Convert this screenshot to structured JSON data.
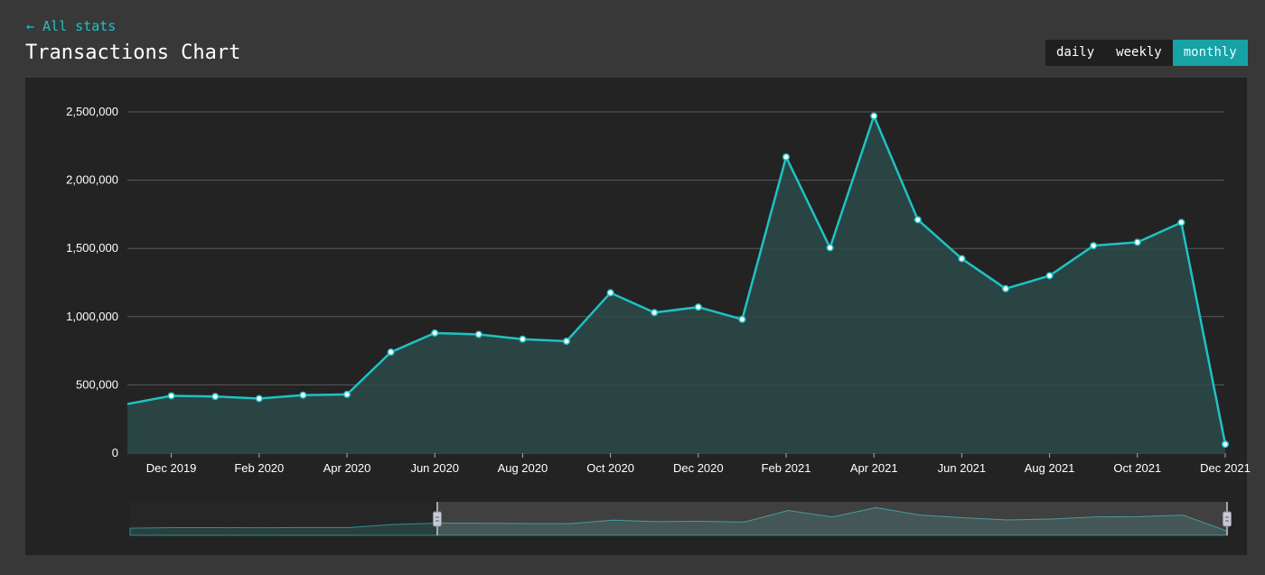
{
  "nav": {
    "back_label": "← All stats"
  },
  "page": {
    "title": "Transactions Chart"
  },
  "range_toggle": {
    "options": [
      {
        "label": "daily",
        "active": false
      },
      {
        "label": "weekly",
        "active": false
      },
      {
        "label": "monthly",
        "active": true
      }
    ]
  },
  "colors": {
    "line": "#1fc2c4",
    "area": "#2c4a4a",
    "grid": "#5a5a5a",
    "text": "#ffffff",
    "active_toggle": "#17a2a6"
  },
  "chart_data": {
    "type": "area",
    "grid": true,
    "ylim": [
      0,
      2500000
    ],
    "yticks": [
      "0",
      "500,000",
      "1,000,000",
      "1,500,000",
      "2,000,000",
      "2,500,000"
    ],
    "xticks": [
      "Dec 2019",
      "Feb 2020",
      "Apr 2020",
      "Jun 2020",
      "Aug 2020",
      "Oct 2020",
      "Dec 2020",
      "Feb 2021",
      "Apr 2021",
      "Jun 2021",
      "Aug 2021",
      "Oct 2021",
      "Dec 2021"
    ],
    "x": [
      "Nov 2019",
      "Dec 2019",
      "Jan 2020",
      "Feb 2020",
      "Mar 2020",
      "Apr 2020",
      "May 2020",
      "Jun 2020",
      "Jul 2020",
      "Aug 2020",
      "Sep 2020",
      "Oct 2020",
      "Nov 2020",
      "Dec 2020",
      "Jan 2021",
      "Feb 2021",
      "Mar 2021",
      "Apr 2021",
      "May 2021",
      "Jun 2021",
      "Jul 2021",
      "Aug 2021",
      "Sep 2021",
      "Oct 2021",
      "Nov 2021",
      "Dec 2021"
    ],
    "values": [
      360000,
      420000,
      415000,
      400000,
      425000,
      430000,
      740000,
      880000,
      870000,
      835000,
      820000,
      1175000,
      1030000,
      1070000,
      980000,
      2170000,
      1505000,
      2470000,
      1710000,
      1425000,
      1205000,
      1300000,
      1520000,
      1545000,
      1690000,
      65000
    ],
    "first_point_marker": false,
    "navigator": {
      "selected_from": "Jun 2020",
      "selected_to": "Dec 2021"
    }
  }
}
